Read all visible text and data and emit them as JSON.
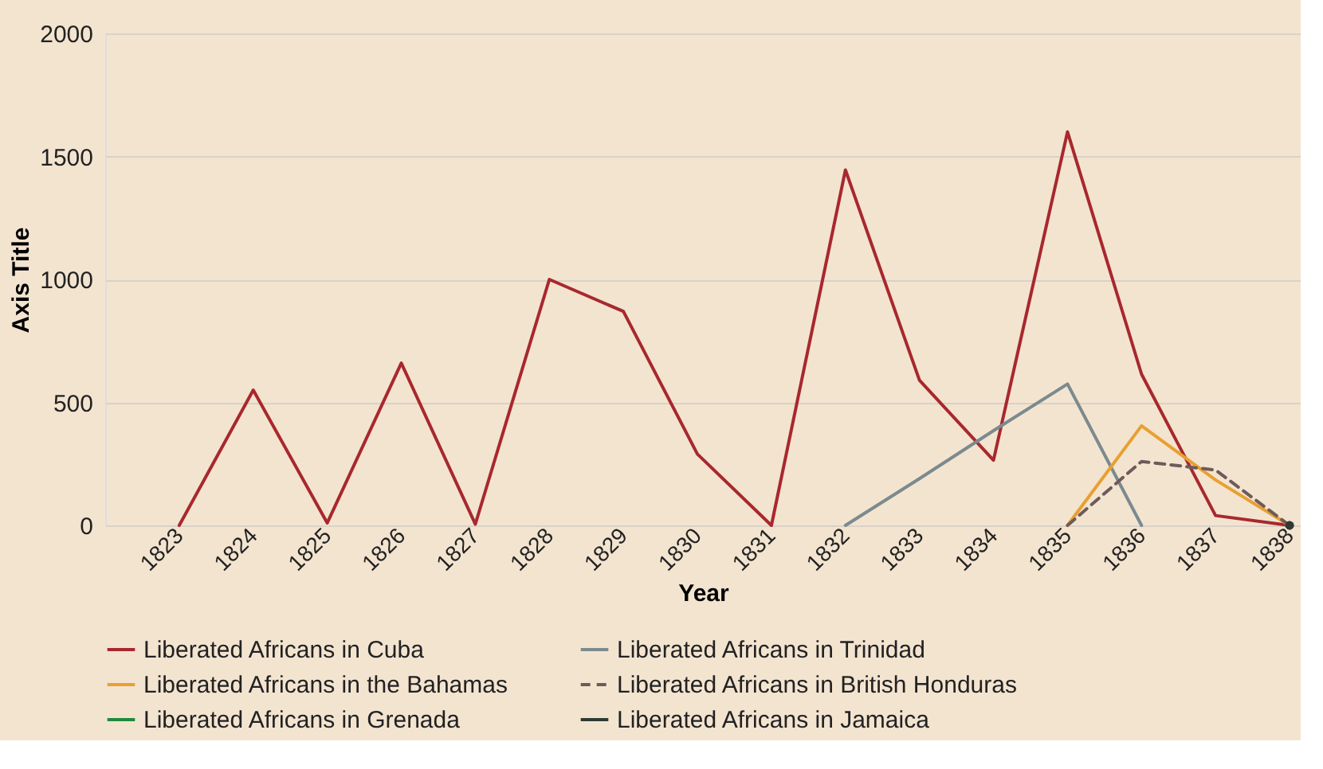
{
  "chart_data": {
    "type": "line",
    "xlabel": "Year",
    "ylabel": "Axis Title",
    "categories": [
      "1823",
      "1824",
      "1825",
      "1826",
      "1827",
      "1828",
      "1829",
      "1830",
      "1831",
      "1832",
      "1833",
      "1834",
      "1835",
      "1836",
      "1837",
      "1838"
    ],
    "ylim": [
      0,
      2000
    ],
    "yticks": [
      0,
      500,
      1000,
      1500,
      2000
    ],
    "grid": "y",
    "legend": "bottom",
    "marker": "none",
    "series": [
      {
        "name": "Liberated Africans in Cuba",
        "color": "#a8282e",
        "line_style": "solid",
        "values": [
          0,
          550,
          10,
          660,
          5,
          1000,
          870,
          290,
          0,
          1445,
          590,
          265,
          1600,
          615,
          40,
          0
        ]
      },
      {
        "name": "Liberated Africans in Trinidad",
        "color": "#7b8a8e",
        "line_style": "solid",
        "values": [
          null,
          null,
          null,
          null,
          null,
          null,
          null,
          null,
          null,
          0,
          190,
          385,
          575,
          0,
          null,
          null
        ]
      },
      {
        "name": "Liberated Africans in the Bahamas",
        "color": "#e8a030",
        "line_style": "solid",
        "values": [
          null,
          null,
          null,
          null,
          null,
          null,
          null,
          null,
          null,
          null,
          null,
          null,
          0,
          405,
          185,
          0
        ]
      },
      {
        "name": "Liberated Africans in British Honduras",
        "color": "#6e5a5a",
        "line_style": "dashed",
        "values": [
          null,
          null,
          null,
          null,
          null,
          null,
          null,
          null,
          null,
          null,
          null,
          null,
          0,
          260,
          225,
          0
        ]
      },
      {
        "name": "Liberated Africans in Grenada",
        "color": "#1f8a3c",
        "line_style": "solid",
        "marker": "circle",
        "values": [
          null,
          null,
          null,
          null,
          null,
          null,
          null,
          null,
          null,
          null,
          null,
          null,
          null,
          null,
          null,
          0
        ]
      },
      {
        "name": "Liberated Africans in Jamaica",
        "color": "#2f3a33",
        "line_style": "solid",
        "marker": "circle",
        "values": [
          null,
          null,
          null,
          null,
          null,
          null,
          null,
          null,
          null,
          null,
          null,
          null,
          null,
          null,
          null,
          0
        ]
      }
    ]
  }
}
